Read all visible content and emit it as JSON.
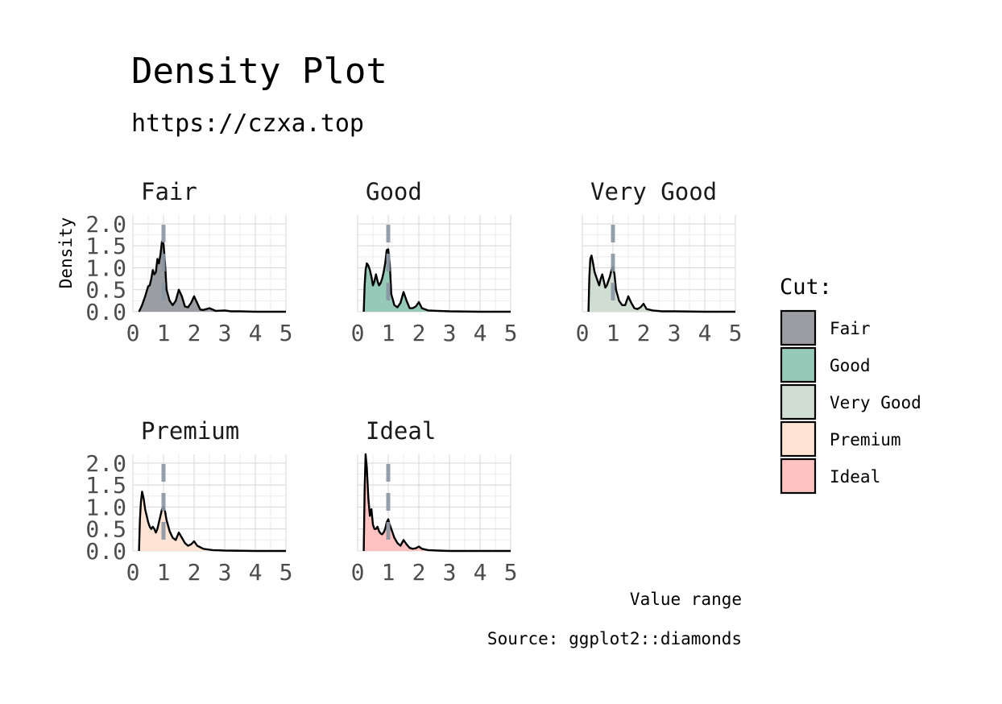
{
  "title": "Density Plot",
  "subtitle": "https://czxa.top",
  "xlabel": "Value range",
  "ylabel": "Density",
  "caption": "Source: ggplot2::diamonds",
  "legend": {
    "title": "Cut:",
    "items": [
      {
        "label": "Fair",
        "color": "#9a9ea3"
      },
      {
        "label": "Good",
        "color": "#96cab8"
      },
      {
        "label": "Very Good",
        "color": "#d0ddd1"
      },
      {
        "label": "Premium",
        "color": "#ffe4d3"
      },
      {
        "label": "Ideal",
        "color": "#ffc2c1"
      }
    ]
  },
  "chart_data": {
    "type": "area",
    "title": "Density Plot",
    "subtitle": "https://czxa.top",
    "xlabel": "Value range",
    "ylabel": "Density",
    "caption": "Source: ggplot2::diamonds",
    "xlim": [
      0,
      5
    ],
    "ylim": [
      0,
      2.2
    ],
    "x_ticks": [
      0,
      1,
      2,
      3,
      4,
      5
    ],
    "y_ticks": [
      0.0,
      0.5,
      1.0,
      1.5,
      2.0
    ],
    "x_tick_labels": [
      "0",
      "1",
      "2",
      "3",
      "4",
      "5"
    ],
    "y_tick_labels": [
      "0.0",
      "0.5",
      "1.0",
      "1.5",
      "2.0"
    ],
    "reference_line": {
      "x": 1,
      "style": "dashed",
      "color": "#8a96a3"
    },
    "grid": true,
    "series": [
      {
        "name": "Fair",
        "color": "#9a9ea3",
        "x": [
          0.2,
          0.3,
          0.4,
          0.5,
          0.55,
          0.6,
          0.65,
          0.7,
          0.75,
          0.8,
          0.85,
          0.9,
          0.95,
          1.0,
          1.05,
          1.1,
          1.2,
          1.3,
          1.4,
          1.5,
          1.6,
          1.7,
          1.8,
          1.9,
          2.0,
          2.1,
          2.2,
          2.3,
          2.5,
          2.7,
          3.0,
          3.2,
          3.5,
          4.0,
          5.0
        ],
        "y": [
          0.0,
          0.15,
          0.35,
          0.58,
          0.6,
          0.75,
          0.95,
          0.85,
          0.9,
          1.2,
          1.1,
          1.3,
          1.6,
          1.55,
          1.1,
          0.5,
          0.25,
          0.15,
          0.25,
          0.5,
          0.35,
          0.12,
          0.1,
          0.2,
          0.35,
          0.2,
          0.05,
          0.04,
          0.08,
          0.02,
          0.03,
          0.01,
          0.01,
          0.0,
          0.0
        ]
      },
      {
        "name": "Good",
        "color": "#96cab8",
        "x": [
          0.2,
          0.23,
          0.26,
          0.3,
          0.35,
          0.4,
          0.45,
          0.5,
          0.55,
          0.6,
          0.65,
          0.7,
          0.75,
          0.8,
          0.85,
          0.9,
          0.95,
          1.0,
          1.05,
          1.1,
          1.2,
          1.3,
          1.4,
          1.5,
          1.6,
          1.7,
          1.8,
          1.9,
          2.0,
          2.1,
          2.3,
          2.6,
          3.0,
          4.0,
          5.0
        ],
        "y": [
          0.0,
          0.6,
          0.95,
          1.1,
          1.05,
          0.95,
          0.8,
          0.6,
          0.7,
          0.85,
          0.7,
          0.6,
          0.65,
          0.75,
          0.9,
          1.1,
          1.4,
          1.42,
          1.1,
          0.4,
          0.15,
          0.1,
          0.2,
          0.45,
          0.25,
          0.08,
          0.08,
          0.12,
          0.22,
          0.08,
          0.03,
          0.02,
          0.01,
          0.0,
          0.0
        ]
      },
      {
        "name": "Very Good",
        "color": "#d0ddd1",
        "x": [
          0.2,
          0.23,
          0.26,
          0.3,
          0.35,
          0.4,
          0.45,
          0.5,
          0.55,
          0.6,
          0.65,
          0.7,
          0.75,
          0.8,
          0.85,
          0.9,
          0.95,
          1.0,
          1.05,
          1.1,
          1.2,
          1.3,
          1.4,
          1.5,
          1.6,
          1.7,
          1.8,
          1.9,
          2.0,
          2.1,
          2.3,
          2.6,
          3.0,
          4.0,
          5.0
        ],
        "y": [
          0.0,
          0.8,
          1.2,
          1.28,
          1.1,
          0.9,
          0.8,
          0.7,
          0.6,
          0.75,
          0.85,
          0.7,
          0.55,
          0.6,
          0.7,
          0.8,
          0.95,
          1.02,
          0.85,
          0.5,
          0.25,
          0.15,
          0.15,
          0.35,
          0.2,
          0.08,
          0.06,
          0.1,
          0.18,
          0.06,
          0.03,
          0.01,
          0.01,
          0.0,
          0.0
        ]
      },
      {
        "name": "Premium",
        "color": "#ffe4d3",
        "x": [
          0.2,
          0.23,
          0.26,
          0.3,
          0.35,
          0.4,
          0.45,
          0.5,
          0.55,
          0.6,
          0.65,
          0.7,
          0.75,
          0.8,
          0.85,
          0.9,
          0.95,
          1.0,
          1.05,
          1.1,
          1.2,
          1.3,
          1.4,
          1.5,
          1.6,
          1.7,
          1.8,
          1.9,
          2.0,
          2.1,
          2.3,
          2.6,
          3.0,
          4.0,
          5.0
        ],
        "y": [
          0.0,
          0.7,
          1.1,
          1.35,
          1.2,
          0.95,
          0.8,
          0.65,
          0.55,
          0.5,
          0.55,
          0.5,
          0.42,
          0.5,
          0.65,
          0.8,
          0.95,
          1.0,
          0.9,
          0.7,
          0.45,
          0.3,
          0.25,
          0.42,
          0.3,
          0.18,
          0.12,
          0.15,
          0.22,
          0.12,
          0.05,
          0.02,
          0.01,
          0.0,
          0.0
        ]
      },
      {
        "name": "Ideal",
        "color": "#ffc2c1",
        "x": [
          0.2,
          0.23,
          0.26,
          0.3,
          0.35,
          0.4,
          0.45,
          0.5,
          0.55,
          0.6,
          0.65,
          0.7,
          0.75,
          0.8,
          0.85,
          0.9,
          0.95,
          1.0,
          1.05,
          1.1,
          1.2,
          1.3,
          1.4,
          1.5,
          1.6,
          1.7,
          1.8,
          1.9,
          2.0,
          2.1,
          2.3,
          2.6,
          3.0,
          4.0,
          5.0
        ],
        "y": [
          0.0,
          1.4,
          2.2,
          1.9,
          1.2,
          0.8,
          0.95,
          0.6,
          0.5,
          0.5,
          0.55,
          0.45,
          0.4,
          0.38,
          0.42,
          0.5,
          0.65,
          0.72,
          0.6,
          0.5,
          0.3,
          0.18,
          0.12,
          0.25,
          0.15,
          0.07,
          0.05,
          0.06,
          0.1,
          0.05,
          0.02,
          0.01,
          0.0,
          0.0,
          0.0
        ]
      }
    ]
  }
}
